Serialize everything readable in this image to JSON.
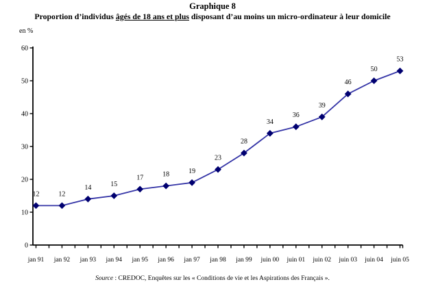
{
  "header": {
    "title": "Graphique 8",
    "subtitle_prefix": "Proportion d’individus ",
    "subtitle_underlined": "âgés de 18 ans et plus",
    "subtitle_suffix": " disposant d’au moins un micro-ordinateur à leur domicile"
  },
  "chart_data": {
    "type": "line",
    "title": "Graphique 8",
    "ylabel": "en %",
    "xlabel": "",
    "unit_label": "en %",
    "categories": [
      "jan 91",
      "jan 92",
      "jan 93",
      "jan 94",
      "jan 95",
      "jan 96",
      "jan 97",
      "jan 98",
      "jan 99",
      "juin 00",
      "juin 01",
      "juin 02",
      "juin 03",
      "juin 04",
      "juin 05"
    ],
    "values": [
      12,
      12,
      14,
      15,
      17,
      18,
      19,
      23,
      28,
      34,
      36,
      39,
      46,
      50,
      53
    ],
    "ylim": [
      0,
      60
    ],
    "y_tick_step": 10,
    "grid": false,
    "legend": "none",
    "show_point_labels": true,
    "line_color": "#3333a6",
    "marker_color": "#000070",
    "axis_color": "#000000",
    "label_color": "#000000"
  },
  "footer": {
    "source_label": "Source",
    "source_text": " : CREDOC, Enquêtes sur les « Conditions de vie et les Aspirations des Français »."
  }
}
